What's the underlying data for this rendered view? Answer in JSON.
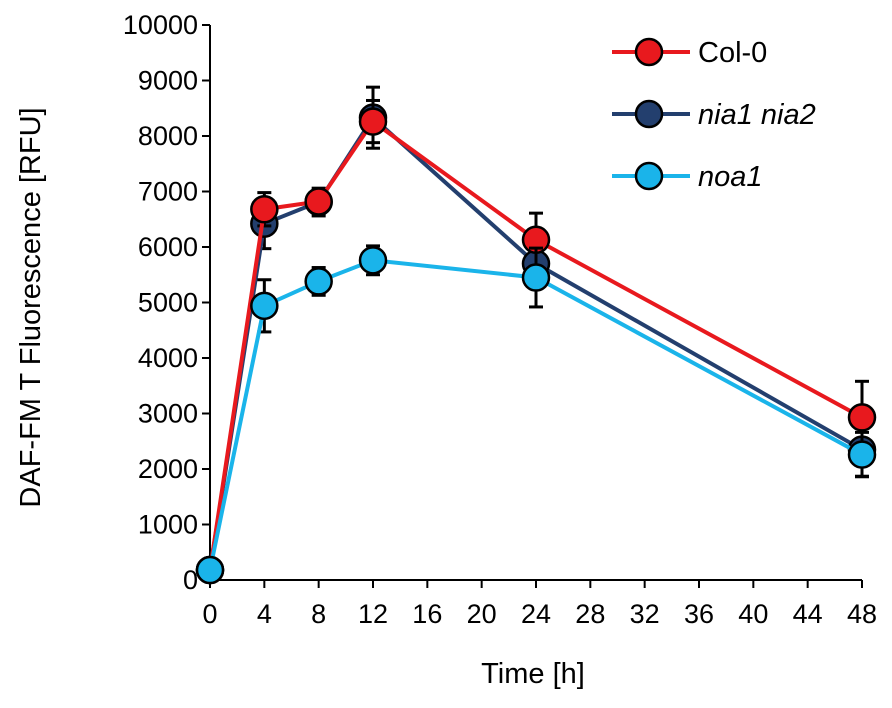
{
  "chart_data": {
    "type": "line",
    "title": "",
    "xlabel": "Time [h]",
    "ylabel": "DAF-FM T Fluorescence  [RFU]",
    "xlim": [
      0,
      48
    ],
    "ylim": [
      0,
      10000
    ],
    "xticks": [
      0,
      4,
      8,
      12,
      16,
      20,
      24,
      28,
      32,
      36,
      40,
      44,
      48
    ],
    "yticks": [
      0,
      1000,
      2000,
      3000,
      4000,
      5000,
      6000,
      7000,
      8000,
      9000,
      10000
    ],
    "x": [
      0,
      4,
      8,
      12,
      24,
      48
    ],
    "grid": false,
    "legend_position": "top-right",
    "series": [
      {
        "name": "Col-0",
        "italic": false,
        "color": "#e8191e",
        "values": [
          180,
          6680,
          6820,
          8260,
          6130,
          2930
        ],
        "errors": [
          0,
          300,
          200,
          380,
          480,
          650
        ]
      },
      {
        "name": "nia1 nia2",
        "italic": true,
        "color": "#233f6e",
        "values": [
          180,
          6420,
          6810,
          8330,
          5700,
          2350
        ],
        "errors": [
          0,
          450,
          250,
          550,
          450,
          480
        ]
      },
      {
        "name": "noa1",
        "italic": true,
        "color": "#1ab4ea",
        "values": [
          180,
          4940,
          5380,
          5760,
          5450,
          2260
        ],
        "errors": [
          0,
          470,
          250,
          260,
          530,
          400
        ]
      }
    ],
    "draw_order": [
      1,
      0,
      2
    ]
  }
}
